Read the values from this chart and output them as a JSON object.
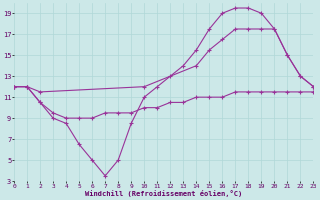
{
  "xlabel": "Windchill (Refroidissement éolien,°C)",
  "background_color": "#cce8e8",
  "line_color": "#993399",
  "grid_color": "#b0d8d8",
  "xmin": 0,
  "xmax": 23,
  "ymin": 3,
  "ymax": 20,
  "yticks": [
    3,
    5,
    7,
    9,
    11,
    13,
    15,
    17,
    19
  ],
  "xticks": [
    0,
    1,
    2,
    3,
    4,
    5,
    6,
    7,
    8,
    9,
    10,
    11,
    12,
    13,
    14,
    15,
    16,
    17,
    18,
    19,
    20,
    21,
    22,
    23
  ],
  "line_flat_x": [
    0,
    1,
    2,
    3,
    4,
    5,
    6,
    7,
    8,
    9,
    10,
    11,
    12,
    13,
    14,
    15,
    16,
    17,
    18,
    19,
    20,
    21,
    22,
    23
  ],
  "line_flat_y": [
    12,
    12,
    10.5,
    9.5,
    9.0,
    9.0,
    9.0,
    9.5,
    9.5,
    9.5,
    10.0,
    10.0,
    10.5,
    10.5,
    11.0,
    11.0,
    11.0,
    11.5,
    11.5,
    11.5,
    11.5,
    11.5,
    11.5,
    11.5
  ],
  "line_mid_x": [
    0,
    1,
    2,
    10,
    14,
    15,
    16,
    17,
    18,
    19,
    20,
    21,
    22,
    23
  ],
  "line_mid_y": [
    12,
    12,
    11.5,
    12.0,
    14.0,
    15.5,
    16.5,
    17.5,
    17.5,
    17.5,
    17.5,
    15.0,
    13.0,
    12.0
  ],
  "line_big_x": [
    0,
    1,
    2,
    3,
    4,
    5,
    6,
    7,
    8,
    9,
    10,
    11,
    12,
    13,
    14,
    15,
    16,
    17,
    18,
    19,
    20,
    21,
    22,
    23
  ],
  "line_big_y": [
    12,
    12,
    10.5,
    9.0,
    8.5,
    6.5,
    5.0,
    3.5,
    5.0,
    8.5,
    11.0,
    12.0,
    13.0,
    14.0,
    15.5,
    17.5,
    19.0,
    19.5,
    19.5,
    19.0,
    17.5,
    15.0,
    13.0,
    12.0
  ]
}
